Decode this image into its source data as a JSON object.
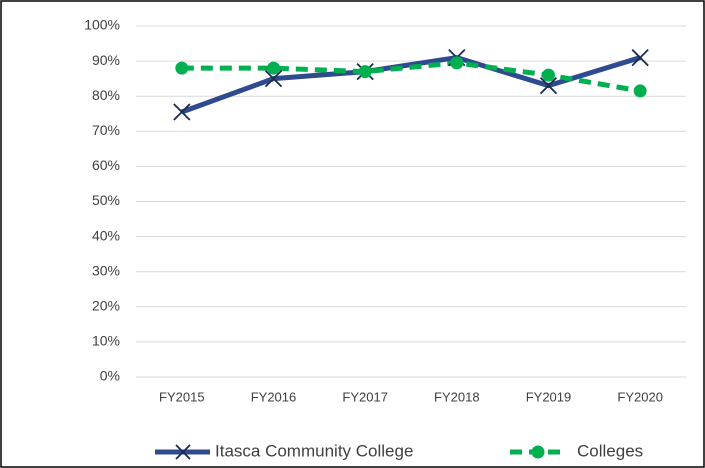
{
  "chart_data": {
    "type": "line",
    "categories": [
      "FY2015",
      "FY2016",
      "FY2017",
      "FY2018",
      "FY2019",
      "FY2020"
    ],
    "series": [
      {
        "name": "Itasca Community College",
        "color": "#2f4b8f",
        "values": [
          75.5,
          85,
          87,
          91,
          83,
          91
        ]
      },
      {
        "name": "Colleges",
        "color": "#00b050",
        "values": [
          88,
          88,
          87,
          89.5,
          86,
          81.5
        ]
      }
    ],
    "ylim": [
      0,
      100
    ],
    "yticks": [
      {
        "value": 0,
        "label": "0%"
      },
      {
        "value": 10,
        "label": "10%"
      },
      {
        "value": 20,
        "label": "20%"
      },
      {
        "value": 30,
        "label": "30%"
      },
      {
        "value": 40,
        "label": "40%"
      },
      {
        "value": 50,
        "label": "50%"
      },
      {
        "value": 60,
        "label": "60%"
      },
      {
        "value": 70,
        "label": "70%"
      },
      {
        "value": 80,
        "label": "80%"
      },
      {
        "value": 90,
        "label": "90%"
      },
      {
        "value": 100,
        "label": "100%"
      }
    ],
    "grid": true,
    "legend": "bottom"
  }
}
